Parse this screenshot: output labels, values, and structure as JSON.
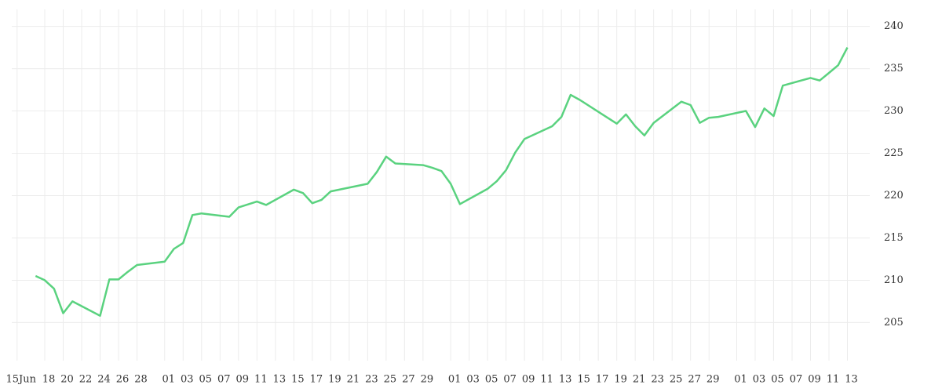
{
  "chart_data": {
    "type": "line",
    "x": [
      "06-17",
      "06-18",
      "06-19",
      "06-20",
      "06-21",
      "06-24",
      "06-25",
      "06-26",
      "06-27",
      "06-28",
      "07-01",
      "07-02",
      "07-03",
      "07-04",
      "07-05",
      "07-08",
      "07-09",
      "07-11",
      "07-12",
      "07-15",
      "07-16",
      "07-17",
      "07-18",
      "07-19",
      "07-23",
      "07-24",
      "07-25",
      "07-26",
      "07-29",
      "07-30",
      "07-31",
      "08-01",
      "08-02",
      "08-05",
      "08-06",
      "08-07",
      "08-08",
      "08-09",
      "08-12",
      "08-13",
      "08-14",
      "08-15",
      "08-19",
      "08-20",
      "08-21",
      "08-22",
      "08-23",
      "08-26",
      "08-27",
      "08-28",
      "08-29",
      "08-30",
      "09-02",
      "09-03",
      "09-04",
      "09-05",
      "09-06",
      "09-09",
      "09-10",
      "09-11",
      "09-12",
      "09-13"
    ],
    "series": [
      {
        "color": "#5ad27f",
        "values": [
          210.5,
          210.0,
          209.0,
          206.1,
          207.5,
          205.8,
          210.1,
          210.1,
          211.0,
          211.8,
          212.2,
          213.7,
          214.4,
          217.7,
          217.9,
          217.5,
          218.6,
          219.3,
          218.9,
          220.7,
          220.3,
          219.1,
          219.5,
          220.5,
          221.4,
          222.8,
          224.6,
          223.8,
          223.6,
          223.3,
          222.9,
          221.4,
          219.0,
          220.8,
          221.7,
          223.0,
          225.1,
          226.7,
          228.2,
          229.3,
          231.9,
          231.3,
          228.5,
          229.6,
          228.2,
          227.1,
          228.6,
          231.1,
          230.7,
          228.6,
          229.2,
          229.3,
          230.0,
          228.1,
          230.3,
          229.4,
          233.0,
          233.9,
          233.6,
          234.5,
          235.4,
          237.5
        ]
      }
    ],
    "xlim": [
      "06-14",
      "09-15"
    ],
    "xticks": [
      {
        "value": "06-15",
        "label": "15Jun"
      },
      {
        "value": "06-18",
        "label": "18"
      },
      {
        "value": "06-20",
        "label": "20"
      },
      {
        "value": "06-22",
        "label": "22"
      },
      {
        "value": "06-24",
        "label": "24"
      },
      {
        "value": "06-26",
        "label": "26"
      },
      {
        "value": "06-28",
        "label": "28"
      },
      {
        "value": "07-01",
        "label": "01"
      },
      {
        "value": "07-03",
        "label": "03"
      },
      {
        "value": "07-05",
        "label": "05"
      },
      {
        "value": "07-07",
        "label": "07"
      },
      {
        "value": "07-09",
        "label": "09"
      },
      {
        "value": "07-11",
        "label": "11"
      },
      {
        "value": "07-13",
        "label": "13"
      },
      {
        "value": "07-15",
        "label": "15"
      },
      {
        "value": "07-17",
        "label": "17"
      },
      {
        "value": "07-19",
        "label": "19"
      },
      {
        "value": "07-21",
        "label": "21"
      },
      {
        "value": "07-23",
        "label": "23"
      },
      {
        "value": "07-25",
        "label": "25"
      },
      {
        "value": "07-27",
        "label": "27"
      },
      {
        "value": "07-29",
        "label": "29"
      },
      {
        "value": "08-01",
        "label": "01"
      },
      {
        "value": "08-03",
        "label": "03"
      },
      {
        "value": "08-05",
        "label": "05"
      },
      {
        "value": "08-07",
        "label": "07"
      },
      {
        "value": "08-09",
        "label": "09"
      },
      {
        "value": "08-11",
        "label": "11"
      },
      {
        "value": "08-13",
        "label": "13"
      },
      {
        "value": "08-15",
        "label": "15"
      },
      {
        "value": "08-17",
        "label": "17"
      },
      {
        "value": "08-19",
        "label": "19"
      },
      {
        "value": "08-21",
        "label": "21"
      },
      {
        "value": "08-23",
        "label": "23"
      },
      {
        "value": "08-25",
        "label": "25"
      },
      {
        "value": "08-27",
        "label": "27"
      },
      {
        "value": "08-29",
        "label": "29"
      },
      {
        "value": "09-01",
        "label": "01"
      },
      {
        "value": "09-03",
        "label": "03"
      },
      {
        "value": "09-05",
        "label": "05"
      },
      {
        "value": "09-07",
        "label": "07"
      },
      {
        "value": "09-09",
        "label": "09"
      },
      {
        "value": "09-11",
        "label": "11"
      },
      {
        "value": "09-13",
        "label": "13"
      }
    ],
    "ylim": [
      200.5,
      242
    ],
    "yticks": [
      205,
      210,
      215,
      220,
      225,
      230,
      235,
      240
    ],
    "grid": true
  }
}
